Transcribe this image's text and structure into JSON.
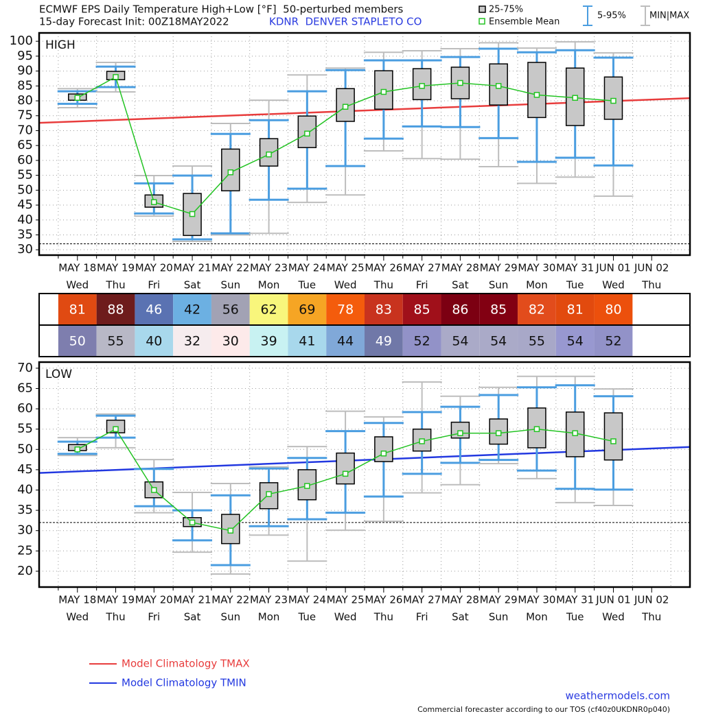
{
  "header": {
    "title": "ECMWF EPS Daily Temperature High+Low [°F]  50-perturbed members",
    "init": "15-day Forecast Init: 00Z18MAY2022",
    "station": "KDNR  DENVER STAPLETO CO",
    "station_color": "#2a3be0"
  },
  "legend": {
    "box": {
      "name": "25-75%",
      "color": "#c8c8c8"
    },
    "mean": {
      "name": "Ensemble Mean",
      "color": "#22c322"
    },
    "whisker": {
      "name": "5-95%",
      "color": "#4a9de0"
    },
    "range": {
      "name": "MIN|MAX",
      "color": "#bdbdbd"
    }
  },
  "chart_data": [
    {
      "type": "box",
      "label": "HIGH",
      "categories": [
        "MAY 18",
        "MAY 19",
        "MAY 20",
        "MAY 21",
        "MAY 22",
        "MAY 23",
        "MAY 24",
        "MAY 25",
        "MAY 26",
        "MAY 27",
        "MAY 28",
        "MAY 29",
        "MAY 30",
        "MAY 31",
        "JUN 01",
        "JUN 02"
      ],
      "weekdays": [
        "Wed",
        "Thu",
        "Fri",
        "Sat",
        "Sun",
        "Mon",
        "Tue",
        "Wed",
        "Thu",
        "Fri",
        "Sat",
        "Sun",
        "Mon",
        "Tue",
        "Wed",
        "Thu"
      ],
      "ylim": [
        28.2,
        102.8
      ],
      "yticks": [
        30,
        35,
        40,
        45,
        50,
        55,
        60,
        65,
        70,
        75,
        80,
        85,
        90,
        95,
        100
      ],
      "grid": true,
      "reference_line": 32,
      "climatology": {
        "name": "Model Climatology TMAX",
        "color": "#e83c3c",
        "start": 72.6,
        "end": 80.9
      },
      "stats": {
        "min": [
          77.7,
          83.0,
          41.3,
          32.8,
          35.0,
          35.5,
          45.9,
          48.4,
          63.2,
          60.6,
          60.4,
          57.9,
          52.3,
          54.4,
          48.0,
          null
        ],
        "p5": [
          79.0,
          84.6,
          42.2,
          33.5,
          35.5,
          46.8,
          50.5,
          58.1,
          67.3,
          71.4,
          71.2,
          67.5,
          59.5,
          60.9,
          58.3,
          null
        ],
        "p25": [
          80.2,
          87.1,
          44.3,
          34.8,
          49.8,
          58.1,
          64.3,
          73.1,
          77.2,
          80.4,
          80.7,
          78.6,
          74.4,
          71.7,
          73.8,
          null
        ],
        "mean": [
          81,
          88,
          46,
          42,
          56,
          62,
          69,
          78,
          83,
          85,
          86,
          85,
          82,
          81,
          80,
          null
        ],
        "p75": [
          82.3,
          89.9,
          48.4,
          48.9,
          63.8,
          67.3,
          74.9,
          84.1,
          90.1,
          90.8,
          91.3,
          92.4,
          92.9,
          91.0,
          88.0,
          null
        ],
        "p95": [
          83.2,
          91.5,
          52.3,
          54.9,
          68.9,
          73.5,
          83.2,
          90.3,
          93.6,
          93.6,
          94.7,
          97.5,
          96.3,
          97.0,
          94.5,
          null
        ],
        "max": [
          84.1,
          92.9,
          54.9,
          58.1,
          72.4,
          80.2,
          88.7,
          91.0,
          96.3,
          96.8,
          97.5,
          99.5,
          97.7,
          99.8,
          96.1,
          null
        ]
      },
      "mean_colors": [
        "#e04a12",
        "#6e1c1c",
        "#5a72b2",
        "#6cb0e2",
        "#a2a2b4",
        "#f8f67c",
        "#f6a524",
        "#f45c0c",
        "#c8331e",
        "#a0101a",
        "#7c0012",
        "#820012",
        "#e24c1c",
        "#e24a0e",
        "#ec500c",
        null
      ]
    },
    {
      "type": "box",
      "label": "LOW",
      "categories": [
        "MAY 18",
        "MAY 19",
        "MAY 20",
        "MAY 21",
        "MAY 22",
        "MAY 23",
        "MAY 24",
        "MAY 25",
        "MAY 26",
        "MAY 27",
        "MAY 28",
        "MAY 29",
        "MAY 30",
        "MAY 31",
        "JUN 01",
        "JUN 02"
      ],
      "weekdays": [
        "Wed",
        "Thu",
        "Fri",
        "Sat",
        "Sun",
        "Mon",
        "Tue",
        "Wed",
        "Thu",
        "Fri",
        "Sat",
        "Sun",
        "Mon",
        "Tue",
        "Wed",
        "Thu"
      ],
      "ylim": [
        16.1,
        71.5
      ],
      "yticks": [
        20,
        25,
        30,
        35,
        40,
        45,
        50,
        55,
        60,
        65,
        70
      ],
      "grid": true,
      "reference_line": 32,
      "climatology": {
        "name": "Model Climatology TMIN",
        "color": "#2238e0",
        "start": 44.2,
        "end": 50.6
      },
      "stats": {
        "min": [
          48.5,
          50.4,
          34.4,
          24.7,
          19.3,
          28.9,
          22.5,
          30.1,
          32.3,
          39.3,
          41.3,
          46.5,
          42.8,
          36.9,
          36.2,
          null
        ],
        "p5": [
          48.9,
          52.9,
          36.0,
          27.6,
          21.5,
          31.1,
          32.8,
          34.4,
          38.4,
          44.0,
          46.7,
          47.4,
          44.8,
          40.3,
          40.1,
          null
        ],
        "p25": [
          49.7,
          54.1,
          38.1,
          31.0,
          26.8,
          35.4,
          37.6,
          41.5,
          47.0,
          49.6,
          52.8,
          51.3,
          50.4,
          48.2,
          47.4,
          null
        ],
        "mean": [
          50,
          55,
          40,
          32,
          30,
          39,
          41,
          44,
          49,
          52,
          54,
          54,
          55,
          54,
          52,
          null
        ],
        "p75": [
          51.2,
          57.2,
          42.0,
          33.2,
          34.0,
          41.8,
          45.0,
          49.1,
          53.1,
          55.0,
          56.7,
          57.5,
          60.2,
          59.2,
          59.0,
          null
        ],
        "p95": [
          51.9,
          58.3,
          45.2,
          35.0,
          38.7,
          45.3,
          47.9,
          54.5,
          56.5,
          59.2,
          60.5,
          63.4,
          65.3,
          65.8,
          63.1,
          null
        ],
        "max": [
          52.9,
          58.7,
          47.5,
          39.4,
          41.6,
          45.7,
          50.7,
          59.4,
          58.0,
          66.6,
          63.1,
          65.3,
          68.0,
          68.0,
          64.9,
          null
        ]
      },
      "mean_colors": [
        "#7e7eae",
        "#b8b8c6",
        "#a8d8ec",
        "#f6ecee",
        "#fdeaea",
        "#c8f2f2",
        "#a8d8ec",
        "#80a8d8",
        "#7078a8",
        "#9292c8",
        "#aaaac8",
        "#aaaac8",
        "#a8a8c8",
        "#9898d0",
        "#9292c8",
        null
      ]
    }
  ],
  "footer": {
    "site": "weathermodels.com",
    "note": "Commercial forecaster according to our TOS (cf40z0UKDNR0p040)",
    "site_color": "#2a3be0"
  }
}
